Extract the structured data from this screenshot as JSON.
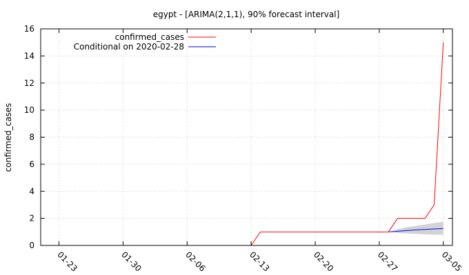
{
  "chart_data": {
    "type": "line",
    "title": "egypt -  [ARIMA(2,1,1), 90% forecast interval]",
    "xlabel": "",
    "ylabel": "confirmed_cases",
    "ylim": [
      0,
      16
    ],
    "yticks": [
      "0",
      "2",
      "4",
      "6",
      "8",
      "10",
      "12",
      "14",
      "16"
    ],
    "xticks": [
      {
        "label": "01-23",
        "date": "2020-01-23"
      },
      {
        "label": "01-30",
        "date": "2020-01-30"
      },
      {
        "label": "02-06",
        "date": "2020-02-06"
      },
      {
        "label": "02-13",
        "date": "2020-02-13"
      },
      {
        "label": "02-20",
        "date": "2020-02-20"
      },
      {
        "label": "02-27",
        "date": "2020-02-27"
      },
      {
        "label": "03-05",
        "date": "2020-03-05"
      }
    ],
    "xlim": [
      "2020-01-21",
      "2020-03-06"
    ],
    "grid": true,
    "legend_position": "top-left",
    "series": [
      {
        "name": "confirmed_cases",
        "color": "#ff0000",
        "x": [
          "2020-02-13",
          "2020-02-14",
          "2020-02-28",
          "2020-02-29",
          "2020-03-02",
          "2020-03-03",
          "2020-03-04",
          "2020-03-05"
        ],
        "y": [
          0,
          1,
          1,
          2,
          2,
          2,
          3,
          15
        ]
      },
      {
        "name": "Conditional on 2020-02-28",
        "color": "#0000ff",
        "x": [
          "2020-02-28",
          "2020-02-29",
          "2020-03-01",
          "2020-03-02",
          "2020-03-03",
          "2020-03-04",
          "2020-03-05"
        ],
        "y": [
          1.0,
          1.05,
          1.1,
          1.15,
          1.18,
          1.22,
          1.25
        ]
      }
    ],
    "interval": {
      "x": [
        "2020-02-28",
        "2020-02-29",
        "2020-03-01",
        "2020-03-02",
        "2020-03-03",
        "2020-03-04",
        "2020-03-05"
      ],
      "lower": [
        1.0,
        0.92,
        0.88,
        0.85,
        0.82,
        0.8,
        0.78
      ],
      "upper": [
        1.0,
        1.2,
        1.35,
        1.45,
        1.55,
        1.65,
        1.75
      ],
      "color": "#d3d3d3"
    }
  }
}
